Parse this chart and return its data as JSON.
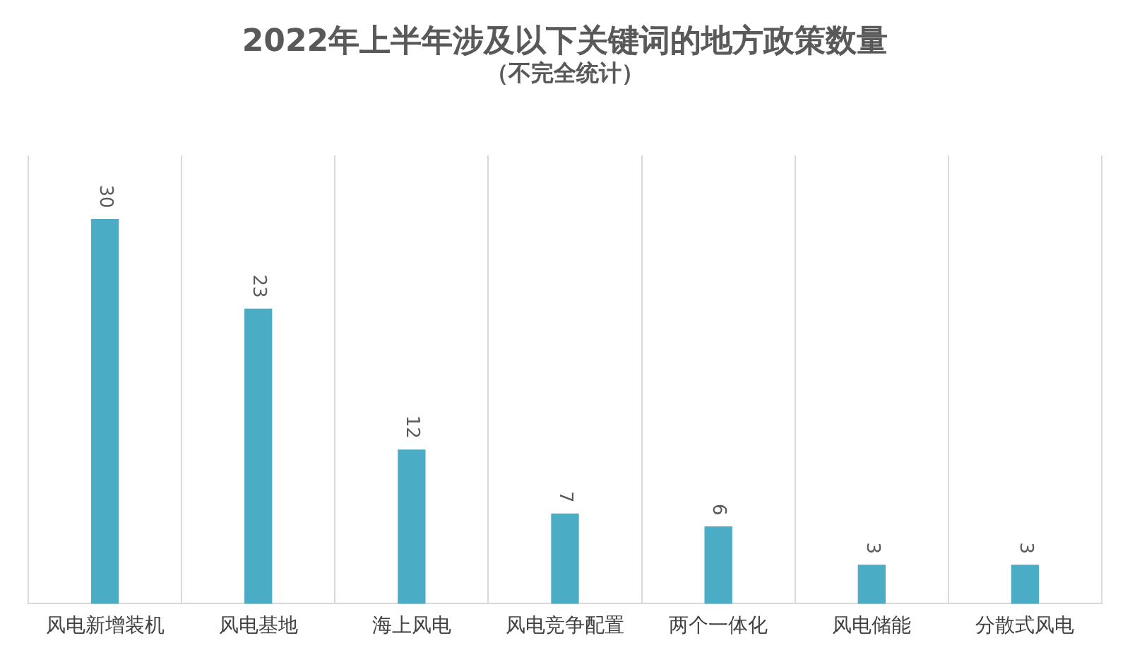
{
  "chart_data": {
    "type": "bar",
    "title": "2022年上半年涉及以下关键词的地方政策数量",
    "subtitle": "（不完全统计）",
    "categories": [
      "风电新增装机",
      "风电基地",
      "海上风电",
      "风电竞争配置",
      "两个一体化",
      "风电储能",
      "分散式风电"
    ],
    "values": [
      30,
      23,
      12,
      7,
      6,
      3,
      3
    ],
    "color": "#4bacc6",
    "data_labels": true,
    "grid": "x",
    "legend": false
  }
}
